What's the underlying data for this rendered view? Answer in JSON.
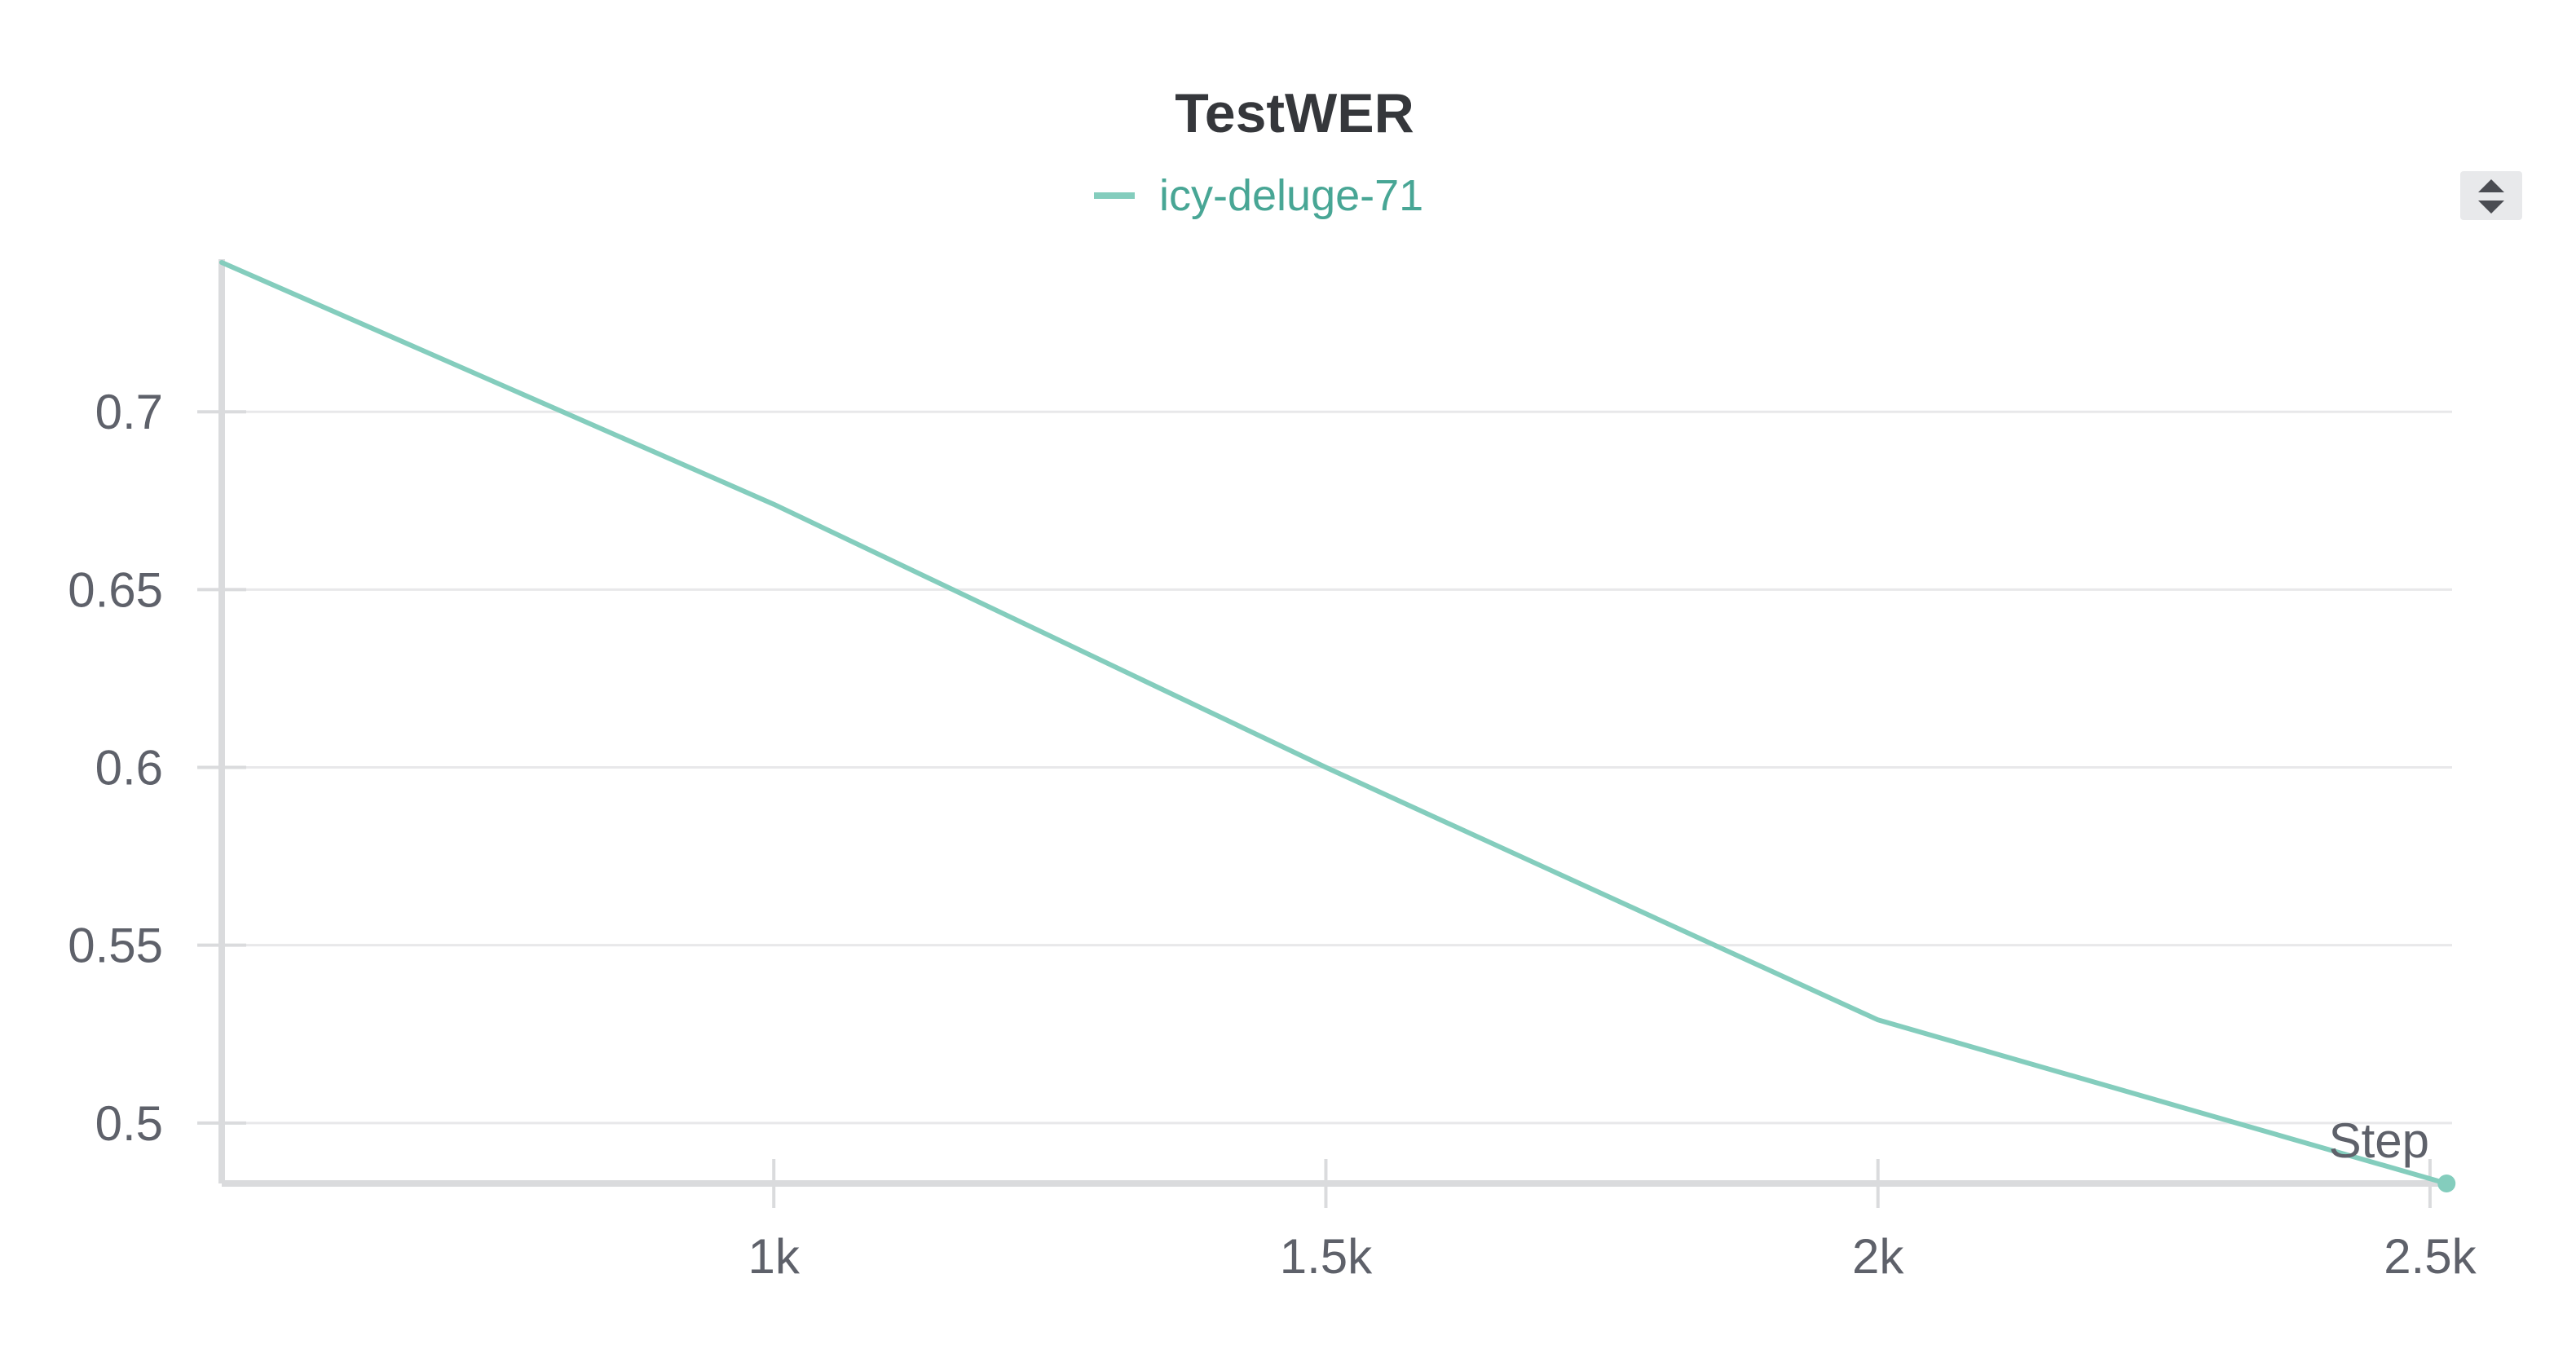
{
  "chart_data": {
    "type": "line",
    "title": "TestWER",
    "xlabel": "Step",
    "ylabel": "",
    "xlim": [
      500,
      2520
    ],
    "ylim": [
      0.483,
      0.742
    ],
    "x_ticks": [
      1000,
      1500,
      2000,
      2500
    ],
    "x_tick_labels": [
      "1k",
      "1.5k",
      "2k",
      "2.5k"
    ],
    "y_ticks": [
      0.5,
      0.55,
      0.6,
      0.65,
      0.7
    ],
    "y_tick_labels": [
      "0.5",
      "0.55",
      "0.6",
      "0.65",
      "0.7"
    ],
    "grid": true,
    "legend_position": "top-center",
    "series": [
      {
        "name": "icy-deluge-71",
        "color": "#84cdbd",
        "x": [
          500,
          1000,
          1500,
          2000,
          2515
        ],
        "y": [
          0.742,
          0.674,
          0.6,
          0.529,
          0.483
        ]
      }
    ]
  },
  "controls": {
    "sort_icon": "sort-up-down-icon"
  }
}
